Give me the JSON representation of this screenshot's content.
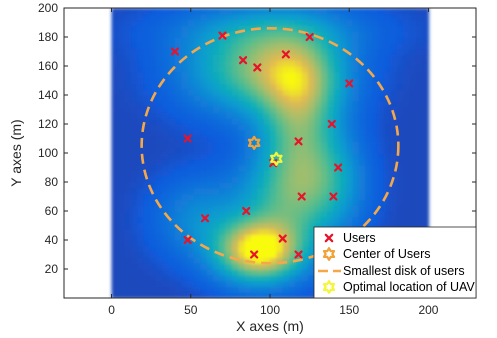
{
  "chart_data": {
    "type": "scatter",
    "title": "",
    "xlabel": "X axes (m)",
    "ylabel": "Y axes (m)",
    "xlim": [
      -30,
      230
    ],
    "ylim": [
      0,
      200
    ],
    "xticks": [
      "0",
      "50",
      "100",
      "150",
      "200"
    ],
    "yticks": [
      "20",
      "40",
      "60",
      "80",
      "100",
      "120",
      "140",
      "160",
      "180",
      "200"
    ],
    "grid": false,
    "legend_position": "bottom-right",
    "background": "heatmap of user density (blue low, green mid, yellow high) over x 0-200, y 0-200",
    "series": [
      {
        "name": "Users",
        "marker": "x",
        "color": "#e8132b",
        "points": [
          [
            40,
            170
          ],
          [
            70,
            181
          ],
          [
            83,
            164
          ],
          [
            92,
            159
          ],
          [
            110,
            168
          ],
          [
            125,
            180
          ],
          [
            150,
            148
          ],
          [
            48,
            110
          ],
          [
            118,
            108
          ],
          [
            139,
            120
          ],
          [
            102,
            93
          ],
          [
            143,
            90
          ],
          [
            120,
            70
          ],
          [
            140,
            70
          ],
          [
            85,
            60
          ],
          [
            59,
            55
          ],
          [
            48,
            40
          ],
          [
            90,
            30
          ],
          [
            108,
            41
          ],
          [
            118,
            30
          ]
        ]
      },
      {
        "name": "Center of Users",
        "marker": "hexagram",
        "color": "#f2a23a",
        "points": [
          [
            90,
            107
          ]
        ]
      },
      {
        "name": "Smallest disk of users",
        "marker": "dashed-circle",
        "color": "#f5a84a",
        "center": [
          100,
          105
        ],
        "radius": 81
      },
      {
        "name": "Optimal location of UAV",
        "marker": "hexagram",
        "color": "#f5f53a",
        "points": [
          [
            104,
            96
          ]
        ]
      }
    ],
    "density_peaks": [
      {
        "x": 93,
        "y": 33,
        "intensity": 1.0,
        "sx": 18,
        "sy": 14
      },
      {
        "x": 95,
        "y": 158,
        "intensity": 0.6,
        "sx": 30,
        "sy": 20
      },
      {
        "x": 118,
        "y": 105,
        "intensity": 0.5,
        "sx": 16,
        "sy": 32
      },
      {
        "x": 120,
        "y": 150,
        "intensity": 0.35,
        "sx": 18,
        "sy": 22
      },
      {
        "x": 108,
        "y": 65,
        "intensity": 0.35,
        "sx": 22,
        "sy": 22
      },
      {
        "x": 55,
        "y": 55,
        "intensity": 0.2,
        "sx": 18,
        "sy": 18
      },
      {
        "x": 140,
        "y": 82,
        "intensity": 0.25,
        "sx": 14,
        "sy": 22
      },
      {
        "x": 100,
        "y": 185,
        "intensity": 0.2,
        "sx": 40,
        "sy": 12
      }
    ]
  }
}
